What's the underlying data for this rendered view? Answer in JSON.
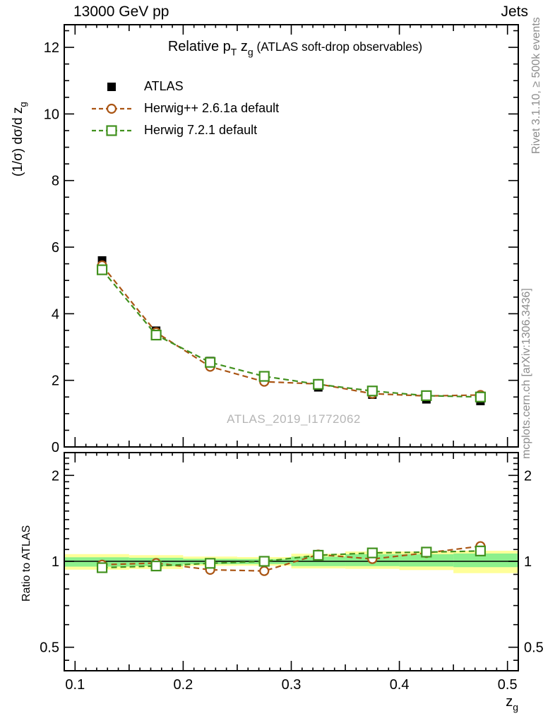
{
  "header": {
    "left": "13000 GeV pp",
    "right": "Jets"
  },
  "side_notes": {
    "right_top": "Rivet 3.1.10, ≥ 500k events",
    "right_bottom": "mcplots.cern.ch [arXiv:1306.3436]"
  },
  "watermark": "ATLAS_2019_I1772062",
  "ratio_panel": {
    "ylabel": "Ratio to ATLAS"
  },
  "chart_data": {
    "type": "line",
    "title_segments": [
      {
        "t": "Relative p"
      },
      {
        "t": "T",
        "sub": true
      },
      {
        "t": " z"
      },
      {
        "t": "g",
        "sub": true
      },
      {
        "t": " (ATLAS soft-drop observables)",
        "small": true
      }
    ],
    "ylabel_main_segments": [
      {
        "t": "(1/σ) dσ/d z"
      },
      {
        "t": "g",
        "sub": true
      }
    ],
    "xlabel_segments": [
      {
        "t": "z"
      },
      {
        "t": "g",
        "sub": true
      }
    ],
    "x": [
      0.125,
      0.175,
      0.225,
      0.275,
      0.325,
      0.375,
      0.425,
      0.475
    ],
    "bin_edges": [
      0.1,
      0.15,
      0.2,
      0.25,
      0.3,
      0.35,
      0.4,
      0.45,
      0.5
    ],
    "series": [
      {
        "name": "ATLAS",
        "color": "#000000",
        "marker": "square-filled",
        "line_dashed": false,
        "values": [
          5.6,
          3.49,
          2.58,
          2.12,
          1.79,
          1.57,
          1.43,
          1.38
        ],
        "err": [
          0.1,
          0.06,
          0.045,
          0.035,
          0.03,
          0.027,
          0.025,
          0.024
        ]
      },
      {
        "name": "Herwig++ 2.6.1a default",
        "color": "#aa5514",
        "marker": "circle-open",
        "line_dashed": true,
        "values": [
          5.45,
          3.44,
          2.41,
          1.96,
          1.89,
          1.6,
          1.53,
          1.56
        ],
        "err": [
          0.04,
          0.025,
          0.02,
          0.018,
          0.017,
          0.015,
          0.015,
          0.016
        ]
      },
      {
        "name": "Herwig 7.2.1 default",
        "color": "#41911e",
        "marker": "square-open",
        "line_dashed": true,
        "values": [
          5.32,
          3.36,
          2.54,
          2.12,
          1.88,
          1.68,
          1.54,
          1.5
        ],
        "err": [
          0.04,
          0.025,
          0.02,
          0.018,
          0.017,
          0.015,
          0.015,
          0.016
        ]
      }
    ],
    "ratio_series": [
      {
        "name": "Herwig++ 2.6.1a default",
        "color": "#aa5514",
        "marker": "circle-open",
        "values": [
          0.973,
          0.986,
          0.934,
          0.925,
          1.056,
          1.019,
          1.07,
          1.13
        ],
        "err": [
          0.013,
          0.011,
          0.011,
          0.013,
          0.014,
          0.013,
          0.015,
          0.021
        ]
      },
      {
        "name": "Herwig 7.2.1 default",
        "color": "#41911e",
        "marker": "square-open",
        "values": [
          0.95,
          0.963,
          0.984,
          1.0,
          1.05,
          1.07,
          1.077,
          1.087
        ],
        "err": [
          0.012,
          0.01,
          0.01,
          0.012,
          0.013,
          0.012,
          0.014,
          0.019
        ]
      }
    ],
    "ratio_band_yellow": [
      [
        0.935,
        1.06
      ],
      [
        0.94,
        1.051
      ],
      [
        0.964,
        1.039
      ],
      [
        0.965,
        1.035
      ],
      [
        0.944,
        1.063
      ],
      [
        0.941,
        1.083
      ],
      [
        0.932,
        1.083
      ],
      [
        0.909,
        1.089
      ]
    ],
    "ratio_band_green": [
      [
        0.958,
        1.033
      ],
      [
        0.962,
        1.029
      ],
      [
        0.977,
        1.02
      ],
      [
        0.978,
        1.019
      ],
      [
        0.962,
        1.039
      ],
      [
        0.962,
        1.059
      ],
      [
        0.959,
        1.059
      ],
      [
        0.954,
        1.065
      ]
    ],
    "band_colors": {
      "outer": "#ffff99",
      "inner": "#8df08c"
    },
    "axes": {
      "x": {
        "range": [
          0.09,
          0.51
        ],
        "label_ticks": [
          0.1,
          0.2,
          0.3,
          0.4,
          0.5
        ],
        "labels": [
          "0.1",
          "0.2",
          "0.3",
          "0.4",
          "0.5"
        ]
      },
      "y_main": {
        "range": [
          0,
          12.68
        ],
        "label_ticks": [
          0,
          2,
          4,
          6,
          8,
          10,
          12
        ],
        "labels": [
          "0",
          "2",
          "4",
          "6",
          "8",
          "10",
          "12"
        ],
        "minor_step": 0.5
      },
      "y_ratio": {
        "range": [
          0.414,
          2.4
        ],
        "scale": "log",
        "label_ticks": [
          0.5,
          1,
          2
        ],
        "labels": [
          "0.5",
          "1",
          "2"
        ],
        "minor_ticks": [
          0.45,
          0.6,
          0.7,
          0.8,
          0.9,
          1.1,
          1.2,
          1.3,
          1.4,
          1.5,
          1.6,
          1.7,
          1.8,
          1.9,
          2.1,
          2.2,
          2.3
        ]
      }
    },
    "legend_position": "top-left-inside",
    "grid": false
  }
}
